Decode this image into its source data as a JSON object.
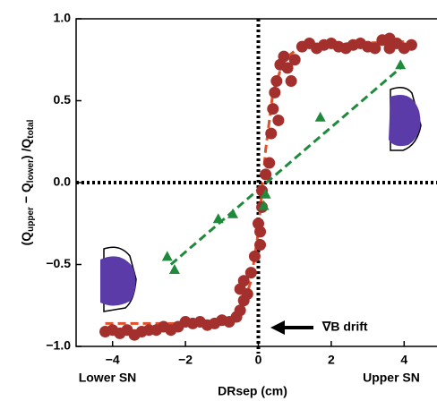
{
  "chart_data": {
    "type": "scatter",
    "xlabel": "DRsep (cm)",
    "ylabel_parts": [
      "(Q",
      "upper",
      " − Q",
      "lower",
      ") /Q",
      "total"
    ],
    "annotations": [
      "Lower SN",
      "Upper SN",
      "∇B drift"
    ],
    "xlim": [
      -5,
      5
    ],
    "ylim": [
      -1.0,
      1.0
    ],
    "xticks": [
      {
        "value": -4,
        "label": "−4"
      },
      {
        "value": -2,
        "label": "−2"
      },
      0,
      2,
      4
    ],
    "yticks": [
      {
        "value": -1.0,
        "label": "−1.0"
      },
      {
        "value": -0.5,
        "label": "−0.5"
      },
      {
        "value": 0.0,
        "label": "0.0"
      },
      {
        "value": 0.5,
        "label": "0.5"
      },
      {
        "value": 1.0,
        "label": "1.0"
      }
    ],
    "series": [
      {
        "marker": "line",
        "dashed": true,
        "color": "#e0502a",
        "x": [
          -4.2,
          -1.0,
          -0.5,
          -0.2,
          0.0,
          0.2,
          0.4,
          0.7,
          1.2,
          4.0
        ],
        "values": [
          -0.86,
          -0.86,
          -0.8,
          -0.6,
          -0.3,
          0.2,
          0.55,
          0.75,
          0.84,
          0.86
        ]
      },
      {
        "marker": "line",
        "dashed": true,
        "color": "#1f8a3c",
        "x": [
          -2.4,
          3.9
        ],
        "values": [
          -0.5,
          0.7
        ]
      },
      {
        "marker": "circle",
        "color": "#a3302c",
        "x": [
          -4.2,
          -4.0,
          -3.8,
          -3.6,
          -3.4,
          -3.2,
          -3.0,
          -2.8,
          -2.6,
          -2.4,
          -2.2,
          -2.0,
          -1.8,
          -1.6,
          -1.4,
          -1.2,
          -1.0,
          -0.8,
          -0.6,
          -0.5,
          -0.4,
          -0.5,
          -0.4,
          -0.3,
          -0.2,
          -0.1,
          0.05,
          0.0,
          0.05,
          0.1,
          0.1,
          0.2,
          0.3,
          0.35,
          0.4,
          0.45,
          0.5,
          0.55,
          0.6,
          0.7,
          0.8,
          0.9,
          1.0,
          1.2,
          1.4,
          1.6,
          1.8,
          2.0,
          2.2,
          2.4,
          2.6,
          2.8,
          3.0,
          3.2,
          3.4,
          3.6,
          3.8,
          4.0,
          4.2,
          3.6
        ],
        "values": [
          -0.91,
          -0.9,
          -0.92,
          -0.9,
          -0.93,
          -0.91,
          -0.9,
          -0.9,
          -0.88,
          -0.9,
          -0.88,
          -0.85,
          -0.86,
          -0.85,
          -0.87,
          -0.86,
          -0.84,
          -0.85,
          -0.82,
          -0.78,
          -0.72,
          -0.65,
          -0.6,
          -0.68,
          -0.55,
          -0.45,
          -0.3,
          -0.25,
          -0.38,
          -0.15,
          -0.05,
          0.05,
          0.12,
          0.3,
          0.45,
          0.55,
          0.62,
          0.38,
          0.72,
          0.77,
          0.7,
          0.62,
          0.75,
          0.83,
          0.85,
          0.82,
          0.84,
          0.85,
          0.83,
          0.82,
          0.84,
          0.85,
          0.83,
          0.82,
          0.87,
          0.88,
          0.85,
          0.82,
          0.84,
          0.82
        ]
      },
      {
        "marker": "triangle",
        "color": "#1f8a3c",
        "x": [
          -2.5,
          -2.3,
          -1.1,
          -0.7,
          0.15,
          0.2,
          1.7,
          3.9
        ],
        "values": [
          -0.45,
          -0.53,
          -0.22,
          -0.19,
          -0.14,
          -0.07,
          0.4,
          0.72
        ]
      }
    ]
  }
}
